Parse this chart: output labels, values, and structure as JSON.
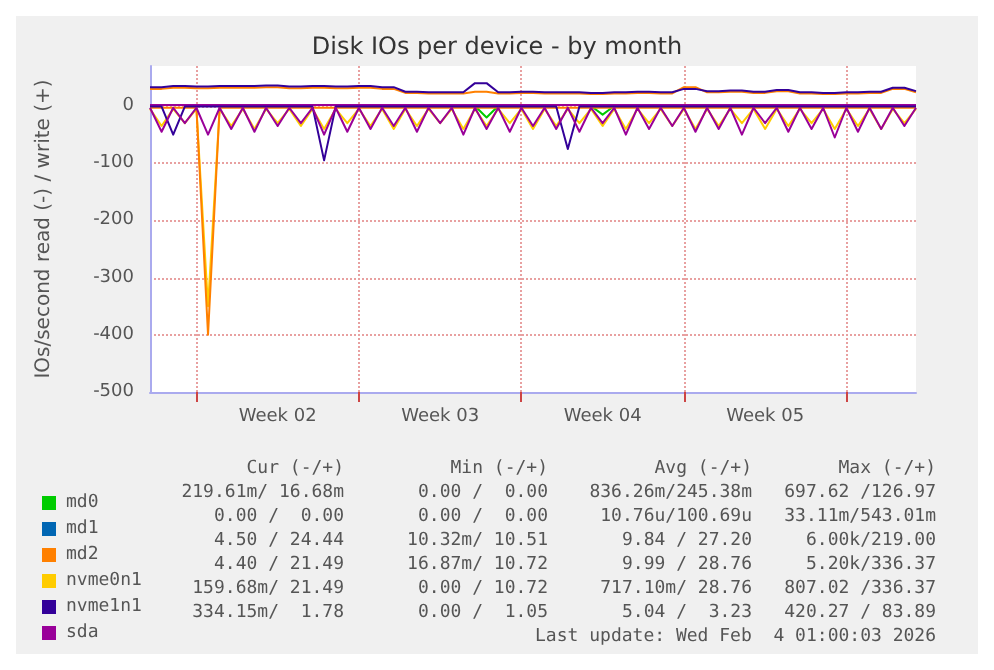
{
  "chart_data": {
    "type": "line",
    "title": "Disk IOs per device - by month",
    "ylabel": "IOs/second read (-) / write (+)",
    "categories": [
      null,
      null,
      null,
      null,
      null,
      null,
      null,
      null,
      null,
      null,
      null,
      "Week 02",
      null,
      null,
      null,
      null,
      null,
      null,
      null,
      null,
      null,
      null,
      null,
      null,
      null,
      "Week 03",
      null,
      null,
      null,
      null,
      null,
      null,
      null,
      null,
      null,
      null,
      null,
      null,
      null,
      "Week 04",
      null,
      null,
      null,
      null,
      null,
      null,
      null,
      null,
      null,
      null,
      null,
      null,
      null,
      "Week 05",
      null,
      null,
      null,
      null,
      null,
      null,
      null,
      null,
      null,
      null,
      null,
      null,
      null
    ],
    "ylim": [
      -500,
      70
    ],
    "yticks": [
      -500,
      -400,
      -300,
      -200,
      -100,
      0
    ],
    "grid": true,
    "legend": "bottom left",
    "marker": "none",
    "line_style": "solid",
    "series": [
      {
        "name": "md0",
        "color": "#00cc00",
        "values": [
          null,
          null,
          null,
          null,
          null,
          null,
          null,
          null,
          null,
          null,
          null,
          null,
          null,
          null,
          null,
          null,
          null,
          null,
          null,
          null,
          null,
          null,
          null,
          null,
          null,
          null,
          null,
          null,
          0,
          -20,
          0,
          null,
          null,
          null,
          null,
          null,
          null,
          null,
          0,
          -15,
          0,
          null,
          null,
          null,
          null,
          null,
          null,
          null,
          null,
          null,
          null,
          null,
          null,
          null,
          null,
          null,
          null,
          null,
          null,
          null,
          null,
          null,
          null,
          null,
          null,
          null,
          null
        ]
      },
      {
        "name": "md1",
        "color": "#0066b3",
        "values": [
          null,
          null,
          null,
          null,
          null,
          null,
          null,
          null,
          null,
          null,
          null,
          null,
          null,
          null,
          null,
          null,
          null,
          null,
          null,
          null,
          null,
          null,
          null,
          null,
          null,
          null,
          null,
          null,
          null,
          null,
          null,
          null,
          null,
          null,
          null,
          null,
          null,
          null,
          null,
          null,
          null,
          null,
          null,
          null,
          null,
          null,
          null,
          null,
          null,
          null,
          null,
          null,
          null,
          null,
          null,
          null,
          null,
          null,
          null,
          null,
          null,
          null,
          null,
          null,
          null,
          null,
          null
        ]
      },
      {
        "name": "md2",
        "color": "#ff8000",
        "values": [
          30,
          30,
          32,
          32,
          31,
          31,
          32,
          32,
          32,
          32,
          33,
          33,
          31,
          31,
          32,
          32,
          31,
          31,
          32,
          32,
          30,
          30,
          23,
          23,
          22,
          22,
          22,
          22,
          25,
          25,
          22,
          22,
          23,
          23,
          22,
          22,
          22,
          22,
          21,
          21,
          22,
          22,
          23,
          23,
          22,
          22,
          33,
          33,
          24,
          24,
          25,
          25,
          23,
          23,
          26,
          26,
          22,
          22,
          21,
          21,
          22,
          22,
          23,
          23,
          30,
          30,
          24
        ]
      },
      {
        "name": "nvme0n1",
        "color": "#ffcc00",
        "values": [
          -5,
          -35,
          -5,
          -30,
          -5,
          -350,
          -5,
          -35,
          -5,
          -40,
          -5,
          -30,
          -5,
          -35,
          -5,
          -40,
          -5,
          -30,
          -5,
          -35,
          -5,
          -40,
          -5,
          -35,
          -5,
          -30,
          -5,
          -40,
          -5,
          -35,
          -5,
          -30,
          -5,
          -40,
          -5,
          -35,
          -5,
          -30,
          -5,
          -35,
          -5,
          -40,
          -5,
          -30,
          -5,
          -35,
          -5,
          -40,
          -5,
          -35,
          -5,
          -30,
          -5,
          -40,
          -5,
          -35,
          -5,
          -30,
          -5,
          -40,
          -5,
          -35,
          -5,
          -40,
          -5,
          -30,
          -5
        ]
      },
      {
        "name": "nvme1n1",
        "color": "#330099",
        "values": [
          33,
          33,
          35,
          35,
          34,
          34,
          35,
          35,
          35,
          35,
          36,
          36,
          34,
          34,
          35,
          35,
          34,
          34,
          35,
          35,
          33,
          33,
          25,
          25,
          24,
          24,
          24,
          24,
          40,
          40,
          24,
          24,
          25,
          25,
          24,
          24,
          24,
          24,
          23,
          23,
          24,
          24,
          25,
          25,
          24,
          24,
          30,
          30,
          26,
          26,
          27,
          27,
          25,
          25,
          28,
          28,
          24,
          24,
          23,
          23,
          24,
          24,
          25,
          25,
          32,
          32,
          26
        ]
      },
      {
        "name": "sda",
        "color": "#990099",
        "values": [
          2,
          2,
          2,
          2,
          2,
          2,
          2,
          2,
          2,
          2,
          2,
          2,
          2,
          2,
          2,
          2,
          2,
          2,
          2,
          2,
          2,
          2,
          2,
          2,
          2,
          2,
          2,
          2,
          2,
          2,
          2,
          2,
          2,
          2,
          2,
          2,
          2,
          2,
          2,
          2,
          2,
          2,
          2,
          2,
          2,
          2,
          2,
          2,
          2,
          2,
          2,
          2,
          2,
          2,
          2,
          2,
          2,
          2,
          2,
          2,
          2,
          2,
          2,
          2,
          2,
          2,
          2
        ]
      },
      {
        "color": "#ff8000",
        "values": [
          -3,
          -3,
          -3,
          -3,
          -3,
          -400,
          -3,
          -3,
          -3,
          -3,
          -3,
          -3,
          -3,
          -3,
          -3,
          -3,
          -3,
          -3,
          -3,
          -3,
          -3,
          -3,
          -3,
          -3,
          -3,
          -3,
          -3,
          -3,
          -3,
          -3,
          -3,
          -3,
          -3,
          -3,
          -3,
          -3,
          -3,
          -3,
          -3,
          -3,
          -3,
          -3,
          -3,
          -3,
          -3,
          -3,
          -3,
          -3,
          -3,
          -3,
          -3,
          -3,
          -3,
          -3,
          -3,
          -3,
          -3,
          -3,
          -3,
          -3,
          -3,
          -3,
          -3,
          -3,
          -3,
          -3,
          -3
        ]
      },
      {
        "color": "#330099",
        "values": [
          -1,
          -1,
          -50,
          -1,
          -1,
          -1,
          -1,
          -1,
          -1,
          -1,
          -1,
          -1,
          -1,
          -1,
          -1,
          -95,
          -1,
          -1,
          -1,
          -1,
          -1,
          -1,
          -1,
          -1,
          -1,
          -1,
          -1,
          -1,
          -1,
          -1,
          -1,
          -1,
          -1,
          -1,
          -1,
          -1,
          -75,
          -1,
          -1,
          -1,
          -1,
          -1,
          -1,
          -1,
          -1,
          -1,
          -1,
          -1,
          -1,
          -1,
          -1,
          -1,
          -1,
          -1,
          -1,
          -1,
          -1,
          -1,
          -1,
          -1,
          -1,
          -1,
          -1,
          -1,
          -1,
          -1,
          -1
        ]
      },
      {
        "color": "#990099",
        "values": [
          -3,
          -45,
          -3,
          -30,
          -3,
          -50,
          -3,
          -40,
          -3,
          -45,
          -3,
          -35,
          -3,
          -30,
          -3,
          -50,
          -3,
          -45,
          -3,
          -40,
          -3,
          -35,
          -3,
          -45,
          -3,
          -30,
          -3,
          -50,
          -3,
          -40,
          -3,
          -45,
          -3,
          -35,
          -3,
          -40,
          -3,
          -45,
          -3,
          -30,
          -3,
          -50,
          -3,
          -40,
          -3,
          -35,
          -3,
          -45,
          -3,
          -40,
          -3,
          -50,
          -3,
          -30,
          -3,
          -45,
          -3,
          -40,
          -3,
          -55,
          -3,
          -45,
          -3,
          -40,
          -3,
          -35,
          -3
        ]
      }
    ],
    "annotations": [
      "Cur (-/+)",
      "Min (-/+)",
      "Avg (-/+)",
      "Max (-/+)",
      "219.61m/ 16.68m",
      "0.00 /  0.00",
      "836.26m/245.38m",
      "697.62 /126.97",
      "0.00 /  0.00",
      "0.00 /  0.00",
      "10.76u/100.69u",
      "33.11m/543.01m",
      "4.50 / 24.44",
      "10.32m/ 10.51",
      "9.84 / 27.20",
      "6.00k/219.00",
      "4.40 / 21.49",
      "16.87m/ 10.72",
      "9.99 / 28.76",
      "5.20k/336.37",
      "159.68m/ 21.49",
      "0.00 / 10.72",
      "717.10m/ 28.76",
      "807.02 /336.37",
      "334.15m/  1.78",
      "0.00 /  1.05",
      "5.04 /  3.23",
      "420.27 / 83.89",
      "Last update: Wed Feb  4 01:00:03 2026"
    ]
  }
}
